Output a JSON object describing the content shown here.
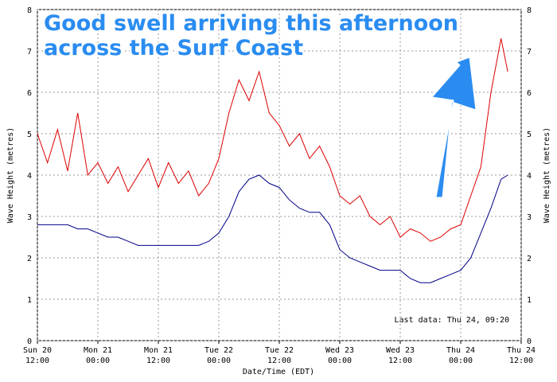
{
  "chart_data": {
    "type": "line",
    "annotation": "Good swell arriving this afternoon across the Surf Coast",
    "note": "Last data: Thu 24, 09:20",
    "x_label": "Date/Time (EDT)",
    "y_label": "Wave Height (metres)",
    "xlim": [
      0,
      96
    ],
    "xticks": [
      {
        "value": 0,
        "label": [
          "Sun 20",
          "12:00"
        ]
      },
      {
        "value": 12,
        "label": [
          "Mon 21",
          "00:00"
        ]
      },
      {
        "value": 24,
        "label": [
          "Mon 21",
          "12:00"
        ]
      },
      {
        "value": 36,
        "label": [
          "Tue 22",
          "00:00"
        ]
      },
      {
        "value": 48,
        "label": [
          "Tue 22",
          "12:00"
        ]
      },
      {
        "value": 60,
        "label": [
          "Wed 23",
          "00:00"
        ]
      },
      {
        "value": 72,
        "label": [
          "Wed 23",
          "12:00"
        ]
      },
      {
        "value": 84,
        "label": [
          "Thu 24",
          "00:00"
        ]
      },
      {
        "value": 96,
        "label": [
          "Thu 24",
          "12:00"
        ]
      }
    ],
    "ylim": [
      0,
      8
    ],
    "yticks": [
      0,
      1,
      2,
      3,
      4,
      5,
      6,
      7,
      8
    ],
    "grid": true,
    "x": [
      0,
      2,
      4,
      6,
      8,
      10,
      12,
      14,
      16,
      18,
      20,
      22,
      24,
      26,
      28,
      30,
      32,
      34,
      36,
      38,
      40,
      42,
      44,
      46,
      48,
      50,
      52,
      54,
      56,
      58,
      60,
      62,
      64,
      66,
      68,
      70,
      72,
      74,
      76,
      78,
      80,
      82,
      84,
      86,
      88,
      90,
      92,
      93.33
    ],
    "series": [
      {
        "color": "#dd0000",
        "values": [
          5.0,
          4.3,
          5.1,
          4.1,
          5.5,
          4.0,
          4.3,
          3.8,
          4.2,
          3.6,
          4.0,
          4.4,
          3.7,
          4.3,
          3.8,
          4.1,
          3.5,
          3.8,
          4.4,
          5.5,
          6.3,
          5.8,
          6.5,
          5.5,
          5.2,
          4.7,
          5.0,
          4.4,
          4.7,
          4.2,
          3.5,
          3.3,
          3.5,
          3.0,
          2.8,
          3.0,
          2.5,
          2.7,
          2.6,
          2.4,
          2.5,
          2.7,
          2.8,
          3.5,
          4.2,
          6.0,
          7.3,
          6.5
        ]
      },
      {
        "color": "#000088",
        "values": [
          2.8,
          2.8,
          2.8,
          2.8,
          2.7,
          2.7,
          2.6,
          2.5,
          2.5,
          2.4,
          2.3,
          2.3,
          2.3,
          2.3,
          2.3,
          2.3,
          2.3,
          2.4,
          2.6,
          3.0,
          3.6,
          3.9,
          4.0,
          3.8,
          3.7,
          3.4,
          3.2,
          3.1,
          3.1,
          2.8,
          2.2,
          2.0,
          1.9,
          1.8,
          1.7,
          1.7,
          1.7,
          1.5,
          1.4,
          1.4,
          1.5,
          1.6,
          1.7,
          2.0,
          2.6,
          3.2,
          3.9,
          4.0
        ]
      }
    ]
  }
}
